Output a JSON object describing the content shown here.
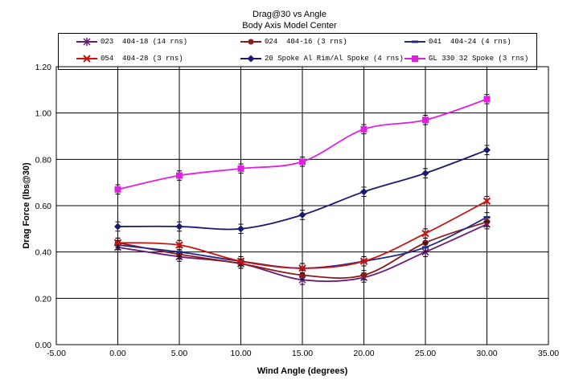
{
  "title": "Drag@30 vs Angle",
  "subtitle": "Body Axis Model Center",
  "chart_data": {
    "type": "line",
    "title": "Drag@30 vs Angle",
    "subtitle": "Body Axis Model Center",
    "xlabel": "Wind Angle (degrees)",
    "ylabel": "Drag Force (lbs@30)",
    "xlim": [
      -5,
      35
    ],
    "ylim": [
      0,
      1.2
    ],
    "xticks": [
      "-5.00",
      "0.00",
      "5.00",
      "10.00",
      "15.00",
      "20.00",
      "25.00",
      "30.00",
      "35.00"
    ],
    "yticks": [
      "0.00",
      "0.20",
      "0.40",
      "0.60",
      "0.80",
      "1.00",
      "1.20"
    ],
    "grid": true,
    "legend_position": "top",
    "error_bars": true,
    "x": [
      0,
      5,
      10,
      15,
      20,
      25,
      30
    ],
    "series": [
      {
        "name": "023  404-18 (14 rns)",
        "color": "#6a1b7a",
        "marker": "asterisk",
        "values": [
          0.42,
          0.38,
          0.35,
          0.28,
          0.29,
          0.4,
          0.52
        ]
      },
      {
        "name": "024  404-16 (3 rns)",
        "color": "#8b1a1a",
        "marker": "circle",
        "values": [
          0.44,
          0.39,
          0.35,
          0.3,
          0.3,
          0.44,
          0.53
        ]
      },
      {
        "name": "041  404-24 (4 rns)",
        "color": "#1c2a8a",
        "marker": "dash",
        "values": [
          0.43,
          0.4,
          0.36,
          0.33,
          0.36,
          0.42,
          0.55
        ]
      },
      {
        "name": "054  404-28 (3 rns)",
        "color": "#cc1111",
        "marker": "x",
        "values": [
          0.44,
          0.43,
          0.36,
          0.33,
          0.36,
          0.48,
          0.62
        ]
      },
      {
        "name": "20 Spoke Al Rim/Al Spoke (4 rns)",
        "color": "#1a1a6e",
        "marker": "diamond",
        "values": [
          0.51,
          0.51,
          0.5,
          0.56,
          0.66,
          0.74,
          0.84
        ]
      },
      {
        "name": "GL 330 32 Spoke (3 rns)",
        "color": "#e020e0",
        "marker": "square",
        "values": [
          0.67,
          0.73,
          0.76,
          0.79,
          0.93,
          0.97,
          1.06
        ]
      }
    ]
  }
}
